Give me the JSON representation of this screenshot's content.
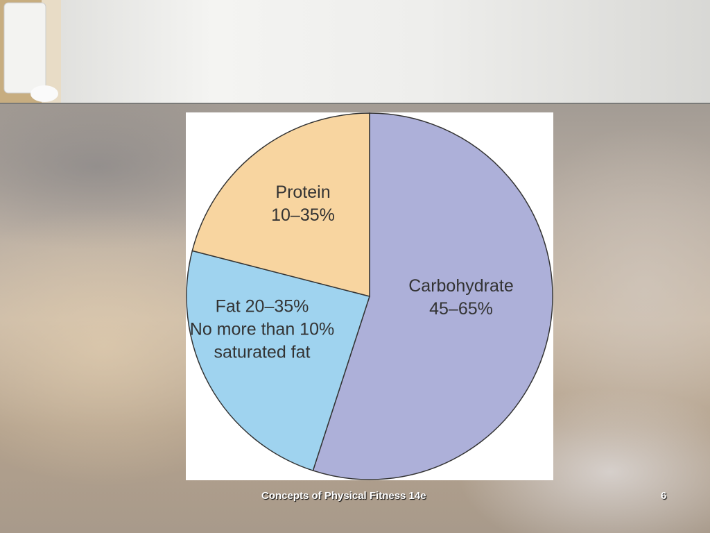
{
  "chart_data": {
    "type": "pie",
    "slice_labels": [
      [
        "Carbohydrate",
        "45–65%"
      ],
      [
        "Fat 20–35%",
        "No more than 10%",
        "saturated fat"
      ],
      [
        "Protein",
        "10–35%"
      ]
    ],
    "values": [
      55,
      24,
      21
    ],
    "colors": [
      "#adb0d9",
      "#9fd3ef",
      "#f8d5a0"
    ],
    "start_angle": 0,
    "direction": "clockwise"
  },
  "footer": {
    "text": "Concepts of Physical Fitness 14e",
    "page_number": "6"
  }
}
